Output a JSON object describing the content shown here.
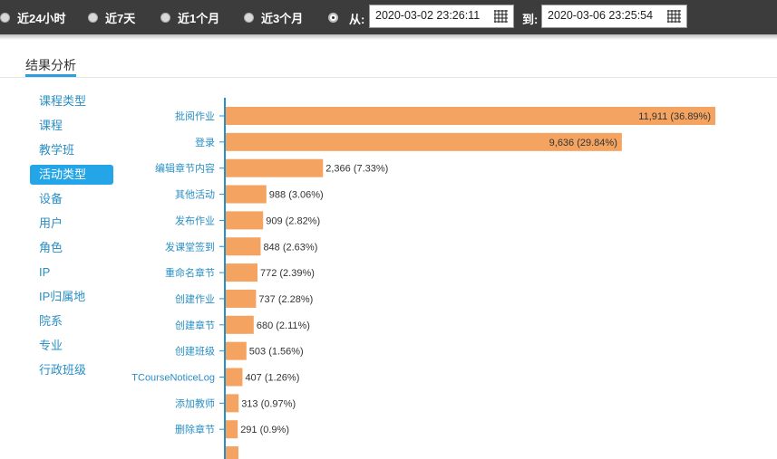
{
  "filters": {
    "options": [
      {
        "label": "近24小时"
      },
      {
        "label": "近7天"
      },
      {
        "label": "近1个月"
      },
      {
        "label": "近3个月"
      }
    ],
    "from_label": "从:",
    "to_label": "到:",
    "from_value": "2020-03-02 23:26:11",
    "to_value": "2020-03-06 23:25:54"
  },
  "section": {
    "title": "结果分析"
  },
  "sidebar": {
    "items": [
      {
        "label": "课程类型"
      },
      {
        "label": "课程"
      },
      {
        "label": "教学班"
      },
      {
        "label": "活动类型",
        "active": true
      },
      {
        "label": "设备"
      },
      {
        "label": "用户"
      },
      {
        "label": "角色"
      },
      {
        "label": "IP"
      },
      {
        "label": "IP归属地"
      },
      {
        "label": "院系"
      },
      {
        "label": "专业"
      },
      {
        "label": "行政班级"
      }
    ]
  },
  "colors": {
    "bar": "#f4a460",
    "axis": "#2a8fc4",
    "accent": "#23a5e8",
    "topbar": "#3c3c3c"
  },
  "chart_data": {
    "type": "bar",
    "orientation": "horizontal",
    "categories": [
      "批阅作业",
      "登录",
      "编辑章节内容",
      "其他活动",
      "发布作业",
      "发课堂签到",
      "重命名章节",
      "创建作业",
      "创建章节",
      "创建班级",
      "TCourseNoticeLog",
      "添加教师",
      "删除章节"
    ],
    "values": [
      11911,
      9636,
      2366,
      988,
      909,
      848,
      772,
      737,
      680,
      503,
      407,
      313,
      291
    ],
    "data_labels": [
      "11,911 (36.89%)",
      "9,636 (29.84%)",
      "2,366 (7.33%)",
      "988 (3.06%)",
      "909 (2.82%)",
      "848 (2.63%)",
      "772 (2.39%)",
      "737 (2.28%)",
      "680 (2.11%)",
      "503 (1.56%)",
      "407 (1.26%)",
      "313 (0.97%)",
      "291 (0.9%)"
    ],
    "xlim": [
      0,
      11911
    ],
    "grid": false,
    "legend": "none"
  }
}
